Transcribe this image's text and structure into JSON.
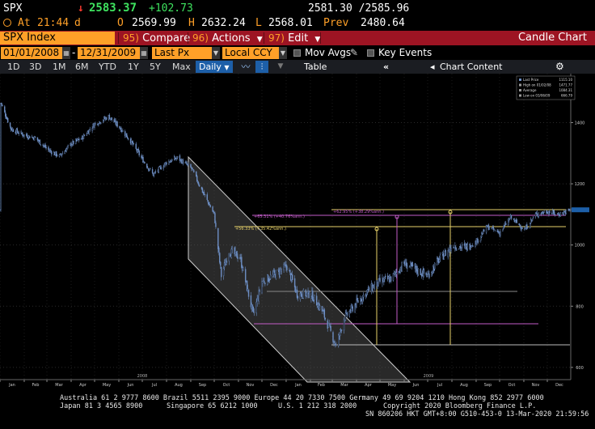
{
  "quote": {
    "ticker": "SPX",
    "arrow": "↓",
    "last": "2583.37",
    "change": "+102.73",
    "bid_ask": "2581.30 /2585.96",
    "at_label": "At",
    "time": "21:44",
    "time_suffix": "d",
    "open_label": "O",
    "open": "2569.99",
    "high_label": "H",
    "high": "2632.24",
    "low_label": "L",
    "low": "2568.01",
    "prev_label": "Prev",
    "prev": "2480.64"
  },
  "function_bar": {
    "security": "SPX Index",
    "menus": [
      {
        "num": "95)",
        "label": "Compare"
      },
      {
        "num": "96)",
        "label": "Actions"
      },
      {
        "num": "97)",
        "label": "Edit"
      }
    ],
    "title": "Candle Chart"
  },
  "params": {
    "start_date": "01/01/2008",
    "end_date": "12/31/2009",
    "price_field": "Last Px",
    "currency": "Local CCY",
    "mov_avgs": "Mov Avgs",
    "key_events": "Key Events"
  },
  "toolbar": {
    "periods": [
      "1D",
      "3D",
      "1M",
      "6M",
      "YTD",
      "1Y",
      "5Y",
      "Max"
    ],
    "frequency": "Daily",
    "table_label": "Table",
    "chart_content_label": "Chart Content"
  },
  "legend": {
    "rows": [
      {
        "label": "Last Price",
        "value": "1115.10"
      },
      {
        "label": "High on 01/02/08",
        "value": "1471.77"
      },
      {
        "label": "Average",
        "value": "1084.31"
      },
      {
        "label": "Low on 03/06/09",
        "value": "666.79"
      }
    ]
  },
  "annotations": {
    "fib1": "+62.95% (+38.29%ann.)",
    "fib2": "+65.31% (+40.76%ann.)",
    "fib3": "+56.33% (+35.42%ann.)"
  },
  "chart_data": {
    "type": "candlestick",
    "title": "",
    "x_range": [
      "2008-01-01",
      "2009-12-31"
    ],
    "ylim": [
      560,
      1560
    ],
    "y_ticks": [
      600,
      800,
      1000,
      1200,
      1400
    ],
    "x_month_labels": [
      "Jan",
      "Feb",
      "Mar",
      "Apr",
      "May",
      "Jun",
      "Jul",
      "Aug",
      "Sep",
      "Oct",
      "Nov",
      "Dec",
      "Jan",
      "Feb",
      "Mar",
      "Apr",
      "May",
      "Jun",
      "Jul",
      "Aug",
      "Sep",
      "Oct",
      "Nov",
      "Dec"
    ],
    "x_year_labels": [
      "2008",
      "2009"
    ],
    "series": [
      {
        "name": "SPX Index",
        "x": [
          "2008-01-02",
          "2008-01-15",
          "2008-01-31",
          "2008-02-15",
          "2008-03-03",
          "2008-03-17",
          "2008-04-01",
          "2008-04-15",
          "2008-05-01",
          "2008-05-19",
          "2008-06-02",
          "2008-06-16",
          "2008-07-01",
          "2008-07-15",
          "2008-08-01",
          "2008-08-15",
          "2008-09-02",
          "2008-09-15",
          "2008-10-01",
          "2008-10-10",
          "2008-10-20",
          "2008-11-03",
          "2008-11-20",
          "2008-12-01",
          "2008-12-15",
          "2009-01-02",
          "2009-01-15",
          "2009-02-02",
          "2009-02-17",
          "2009-03-06",
          "2009-03-16",
          "2009-04-01",
          "2009-04-15",
          "2009-05-01",
          "2009-05-15",
          "2009-06-01",
          "2009-06-15",
          "2009-07-01",
          "2009-07-15",
          "2009-08-03",
          "2009-08-17",
          "2009-09-01",
          "2009-09-15",
          "2009-10-01",
          "2009-10-15",
          "2009-11-02",
          "2009-11-16",
          "2009-12-01",
          "2009-12-15",
          "2009-12-31"
        ],
        "values": [
          1465,
          1380,
          1360,
          1350,
          1310,
          1290,
          1330,
          1350,
          1395,
          1420,
          1385,
          1340,
          1280,
          1230,
          1270,
          1285,
          1250,
          1180,
          1100,
          900,
          980,
          960,
          770,
          880,
          900,
          930,
          840,
          840,
          780,
          670,
          760,
          810,
          850,
          880,
          890,
          940,
          920,
          900,
          950,
          1000,
          990,
          1010,
          1060,
          1040,
          1090,
          1050,
          1100,
          1110,
          1100,
          1115
        ]
      }
    ],
    "reference_levels": [
      {
        "label": "High on 01/02/08",
        "value": 1471.77
      },
      {
        "label": "Low on 03/06/09",
        "value": 666.79
      }
    ]
  },
  "footer": {
    "line1": "Australia 61 2 9777 8600 Brazil 5511 2395 9000 Europe 44 20 7330 7500 Germany 49 69 9204 1210 Hong Kong 852 2977 6000",
    "line2_left": "Japan 81 3 4565 8900",
    "line2_mid": "Singapore 65 6212 1000",
    "line2_us": "U.S. 1 212 318 2000",
    "line2_right": "Copyright 2020 Bloomberg Finance L.P.",
    "line3": "SN 860206 HKT  GMT+8:00 G510-453-0 13-Mar-2020 21:59:56"
  },
  "colors": {
    "amber": "#ffa028",
    "function_bar": "#9d1423",
    "candle": "#6e8fc4",
    "channel": "#cccccc",
    "fib_purple": "#c25dc8",
    "fib_yellow": "#e8d26a"
  }
}
